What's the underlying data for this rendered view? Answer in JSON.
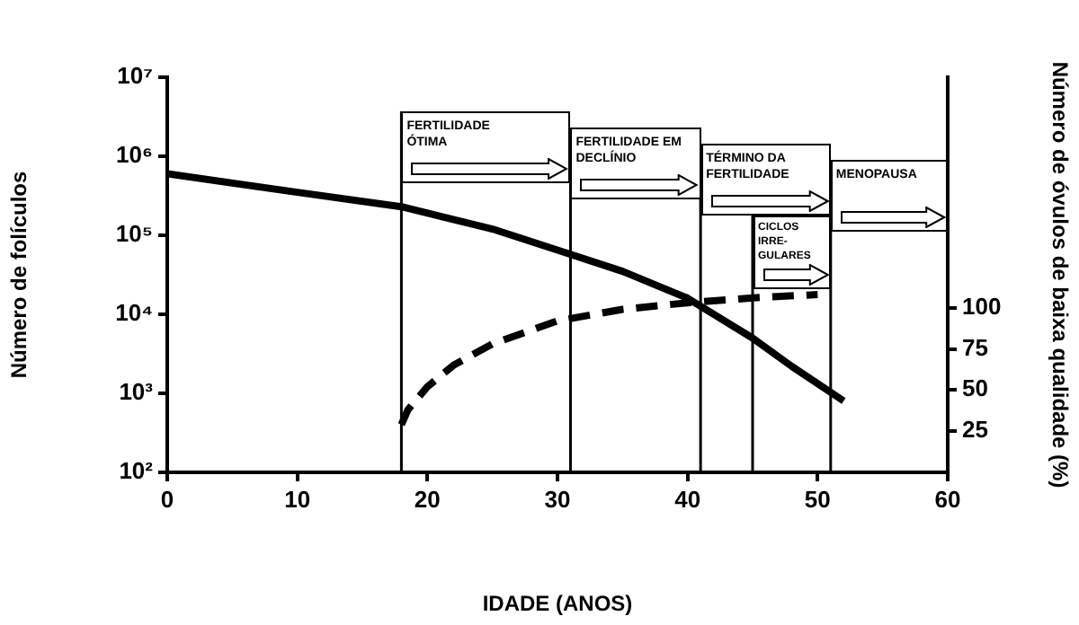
{
  "chart_data": {
    "type": "line",
    "xlabel": "IDADE (ANOS)",
    "ylabel": "Número de folículos",
    "y2label": "Número de óvulos de baixa qualidade (%)",
    "xlim": [
      0,
      60
    ],
    "xticks": [
      0,
      10,
      20,
      30,
      40,
      50,
      60
    ],
    "ylim": [
      100,
      10000000
    ],
    "yticks": [
      {
        "value": 100,
        "label": "10²"
      },
      {
        "value": 1000,
        "label": "10³"
      },
      {
        "value": 10000,
        "label": "10⁴"
      },
      {
        "value": 100000,
        "label": "10⁵"
      },
      {
        "value": 1000000,
        "label": "10⁶"
      },
      {
        "value": 10000000,
        "label": "10⁷"
      }
    ],
    "y2lim": [
      0,
      240
    ],
    "y2ticks": [
      25,
      50,
      75,
      100
    ],
    "log": "y",
    "grid": false,
    "legend": false,
    "marker": "none",
    "series": [
      {
        "color": "#000000",
        "line_style": "solid",
        "x": [
          0,
          10,
          18,
          25,
          30,
          35,
          40,
          45,
          48,
          52
        ],
        "values": [
          600000,
          350000,
          230000,
          120000,
          65000,
          35000,
          16000,
          5000,
          2200,
          800
        ]
      },
      {
        "color": "#000000",
        "line_style": "dashed",
        "axis": "y2",
        "x": [
          18,
          18.5,
          20,
          22,
          25,
          30,
          35,
          40,
          45,
          50
        ],
        "values": [
          29,
          38,
          52,
          65,
          78,
          92,
          99,
          103,
          106,
          108
        ]
      }
    ],
    "ref_lines": [
      {
        "axis": "x",
        "value": 18,
        "label": "FERTILIDADE ÓTIMA"
      },
      {
        "axis": "x",
        "value": 31,
        "label": "FERTILIDADE EM DECLÍNIO"
      },
      {
        "axis": "x",
        "value": 41,
        "label": "TÉRMINO DA FERTILIDADE"
      },
      {
        "axis": "x",
        "value": 51,
        "label": "MENOPAUSA"
      },
      {
        "axis": "x",
        "value": 45,
        "label": "CICLOS IRRE- GULARES"
      }
    ]
  }
}
